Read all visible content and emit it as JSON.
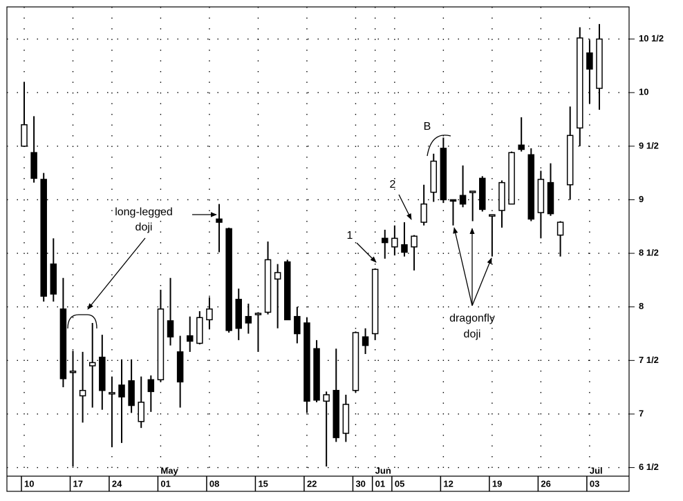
{
  "chart_data": {
    "type": "candlestick",
    "categories": [
      "10",
      null,
      null,
      null,
      null,
      "17",
      null,
      null,
      null,
      "24",
      null,
      null,
      null,
      null,
      "01",
      null,
      null,
      null,
      null,
      "08",
      null,
      null,
      null,
      null,
      "15",
      null,
      null,
      null,
      null,
      "22",
      null,
      null,
      null,
      null,
      "30",
      null,
      "01",
      null,
      "05",
      null,
      null,
      null,
      null,
      "12",
      null,
      null,
      null,
      null,
      "19",
      null,
      null,
      null,
      null,
      "26",
      null,
      null,
      null,
      null,
      "03",
      null
    ],
    "months": [
      null,
      null,
      null,
      null,
      null,
      null,
      null,
      null,
      null,
      null,
      null,
      null,
      null,
      null,
      "May",
      null,
      null,
      null,
      null,
      null,
      null,
      null,
      null,
      null,
      null,
      null,
      null,
      null,
      null,
      null,
      null,
      null,
      null,
      null,
      null,
      null,
      "Jun",
      null,
      null,
      null,
      null,
      null,
      null,
      null,
      null,
      null,
      null,
      null,
      null,
      null,
      null,
      null,
      null,
      null,
      null,
      null,
      null,
      null,
      "Jul",
      null
    ],
    "open": [
      9.5,
      9.44,
      9.19,
      8.4,
      7.98,
      7.4,
      7.17,
      7.45,
      7.53,
      7.2,
      7.27,
      7.31,
      6.93,
      7.32,
      7.32,
      7.87,
      7.58,
      7.73,
      7.66,
      7.88,
      8.82,
      8.73,
      8.07,
      7.91,
      7.93,
      7.95,
      8.26,
      8.42,
      7.91,
      7.85,
      7.61,
      7.12,
      7.22,
      6.82,
      7.22,
      7.72,
      7.75,
      8.64,
      8.56,
      8.58,
      8.56,
      8.79,
      9.07,
      9.48,
      9.0,
      9.04,
      9.08,
      9.2,
      8.86,
      8.9,
      8.96,
      9.51,
      9.42,
      8.88,
      9.16,
      8.67,
      9.14,
      9.67,
      10.37,
      10.04
    ],
    "high": [
      10.1,
      9.78,
      9.25,
      8.64,
      8.27,
      7.59,
      7.58,
      7.85,
      7.74,
      7.35,
      7.51,
      7.51,
      7.35,
      7.36,
      8.16,
      8.27,
      7.73,
      7.91,
      7.96,
      8.09,
      8.96,
      8.74,
      8.17,
      8.03,
      7.95,
      8.61,
      8.4,
      8.44,
      8.0,
      7.9,
      7.69,
      7.21,
      7.61,
      7.18,
      7.77,
      7.8,
      8.36,
      8.72,
      8.76,
      8.79,
      8.67,
      9.14,
      9.43,
      9.58,
      9.0,
      9.32,
      9.08,
      9.22,
      8.86,
      9.18,
      9.45,
      9.77,
      9.48,
      9.27,
      9.34,
      8.8,
      9.87,
      10.61,
      10.49,
      10.64
    ],
    "low": [
      9.5,
      9.16,
      8.05,
      8.05,
      7.25,
      6.51,
      6.92,
      7.06,
      7.04,
      6.69,
      6.73,
      7.01,
      6.87,
      7.02,
      7.3,
      7.64,
      7.06,
      7.58,
      7.65,
      7.79,
      8.51,
      7.76,
      7.69,
      7.75,
      7.58,
      7.93,
      7.8,
      7.88,
      7.66,
      7.01,
      7.11,
      6.51,
      6.74,
      6.74,
      7.2,
      7.56,
      7.69,
      8.45,
      8.48,
      8.47,
      8.34,
      8.76,
      8.98,
      8.97,
      8.76,
      8.93,
      8.8,
      8.89,
      8.47,
      8.74,
      8.96,
      9.45,
      8.8,
      8.64,
      8.85,
      8.47,
      9.0,
      9.5,
      9.9,
      9.84
    ],
    "close": [
      9.7,
      9.2,
      8.1,
      8.12,
      7.33,
      7.4,
      7.22,
      7.48,
      7.22,
      7.2,
      7.16,
      7.08,
      7.11,
      7.21,
      7.98,
      7.72,
      7.3,
      7.68,
      7.9,
      7.98,
      8.79,
      7.78,
      7.8,
      7.85,
      7.94,
      8.44,
      8.32,
      7.88,
      7.75,
      7.12,
      7.13,
      7.18,
      6.78,
      7.09,
      7.76,
      7.64,
      8.35,
      8.6,
      8.64,
      8.51,
      8.66,
      8.96,
      9.36,
      9.0,
      8.99,
      8.96,
      9.08,
      8.91,
      8.86,
      9.16,
      9.44,
      9.47,
      8.82,
      9.19,
      8.87,
      8.79,
      9.6,
      10.51,
      10.22,
      10.5
    ],
    "up_color": "#ffffff",
    "down_color": "#000000",
    "ylim": [
      6.42,
      10.8
    ],
    "yticks": [
      {
        "value": 6.5,
        "label": "6 1/2"
      },
      7,
      {
        "value": 7.5,
        "label": "7 1/2"
      },
      8,
      {
        "value": 8.5,
        "label": "8 1/2"
      },
      9,
      {
        "value": 9.5,
        "label": "9 1/2"
      },
      10,
      {
        "value": 10.5,
        "label": "10 1/2"
      }
    ],
    "grid": true,
    "annotations": [
      {
        "text": "long-legged"
      },
      {
        "text": "doji"
      },
      {
        "text": "dragonfly"
      },
      {
        "text": "doji"
      },
      {
        "text": "1"
      },
      {
        "text": "2"
      },
      {
        "text": "B"
      }
    ]
  }
}
